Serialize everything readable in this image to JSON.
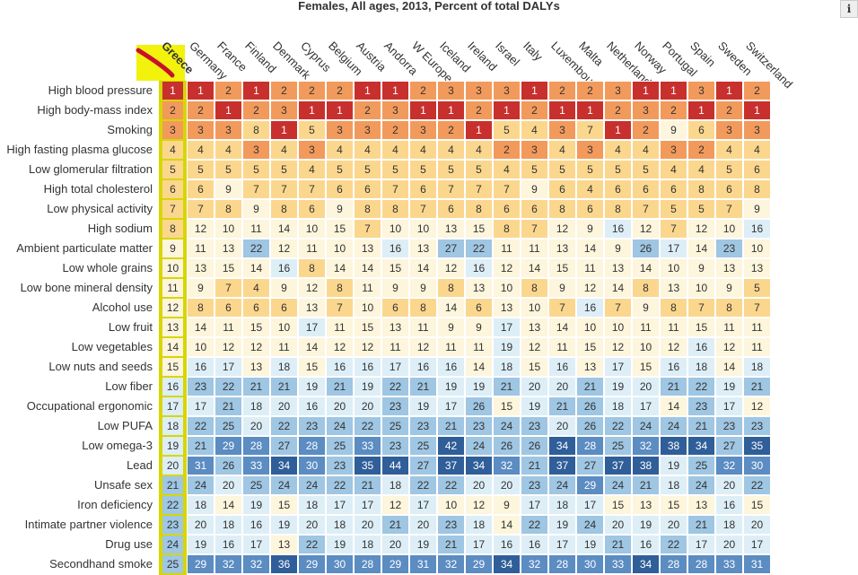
{
  "chart_data": {
    "type": "heatmap",
    "title": "Females, All ages, 2013, Percent of total DALYs",
    "selected_country": "Greece",
    "countries": [
      "Greece",
      "Germany",
      "France",
      "Finland",
      "Denmark",
      "Cyprus",
      "Belgium",
      "Austria",
      "Andorra",
      "W Europe",
      "Iceland",
      "Ireland",
      "Israel",
      "Italy",
      "Luxembourg",
      "Malta",
      "Netherlands",
      "Norway",
      "Portugal",
      "Spain",
      "Sweden",
      "Switzerland"
    ],
    "risk_factors": [
      "High blood pressure",
      "High body-mass index",
      "Smoking",
      "High fasting plasma glucose",
      "Low glomerular filtration",
      "High total cholesterol",
      "Low physical activity",
      "High sodium",
      "Ambient particulate matter",
      "Low whole grains",
      "Low bone mineral density",
      "Alcohol use",
      "Low fruit",
      "Low vegetables",
      "Low nuts and seeds",
      "Low fiber",
      "Occupational ergonomic",
      "Low PUFA",
      "Low omega-3",
      "Lead",
      "Unsafe sex",
      "Iron deficiency",
      "Intimate partner violence",
      "Drug use",
      "Secondhand smoke"
    ],
    "ranks": [
      [
        1,
        1,
        2,
        1,
        2,
        2,
        2,
        1,
        1,
        2,
        3,
        3,
        3,
        1,
        2,
        2,
        3,
        1,
        1,
        3,
        1,
        2
      ],
      [
        2,
        2,
        1,
        2,
        3,
        1,
        1,
        2,
        3,
        1,
        1,
        2,
        1,
        2,
        1,
        1,
        2,
        3,
        2,
        1,
        2,
        1
      ],
      [
        3,
        3,
        3,
        8,
        1,
        5,
        3,
        3,
        2,
        3,
        2,
        1,
        5,
        4,
        3,
        7,
        1,
        2,
        9,
        6,
        3,
        3
      ],
      [
        4,
        4,
        4,
        3,
        4,
        3,
        4,
        4,
        4,
        4,
        4,
        4,
        2,
        3,
        4,
        3,
        4,
        4,
        3,
        2,
        4,
        4
      ],
      [
        5,
        5,
        5,
        5,
        5,
        4,
        5,
        5,
        5,
        5,
        5,
        5,
        4,
        5,
        5,
        5,
        5,
        5,
        4,
        4,
        5,
        6
      ],
      [
        6,
        6,
        9,
        7,
        7,
        7,
        6,
        6,
        7,
        6,
        7,
        7,
        7,
        9,
        6,
        4,
        6,
        6,
        6,
        8,
        6,
        8
      ],
      [
        7,
        7,
        8,
        9,
        8,
        6,
        9,
        8,
        8,
        7,
        6,
        8,
        6,
        6,
        8,
        6,
        8,
        7,
        5,
        5,
        7,
        9
      ],
      [
        8,
        12,
        10,
        11,
        14,
        10,
        15,
        7,
        10,
        10,
        13,
        15,
        8,
        7,
        12,
        9,
        16,
        12,
        7,
        12,
        10,
        16
      ],
      [
        9,
        11,
        13,
        22,
        12,
        11,
        10,
        13,
        16,
        13,
        27,
        22,
        11,
        11,
        13,
        14,
        9,
        26,
        17,
        14,
        23,
        10
      ],
      [
        10,
        13,
        15,
        14,
        16,
        8,
        14,
        14,
        15,
        14,
        12,
        16,
        12,
        14,
        15,
        11,
        13,
        14,
        10,
        9,
        13,
        13
      ],
      [
        11,
        9,
        7,
        4,
        9,
        12,
        8,
        11,
        9,
        9,
        8,
        13,
        10,
        8,
        9,
        12,
        14,
        8,
        13,
        10,
        9,
        5
      ],
      [
        12,
        8,
        6,
        6,
        6,
        13,
        7,
        10,
        6,
        8,
        14,
        6,
        13,
        10,
        7,
        16,
        7,
        9,
        8,
        7,
        8,
        7
      ],
      [
        13,
        14,
        11,
        15,
        10,
        17,
        11,
        15,
        13,
        11,
        9,
        9,
        17,
        13,
        14,
        10,
        10,
        11,
        11,
        15,
        11,
        11
      ],
      [
        14,
        10,
        12,
        12,
        11,
        14,
        12,
        12,
        11,
        12,
        11,
        11,
        19,
        12,
        11,
        15,
        12,
        10,
        12,
        16,
        12,
        11
      ],
      [
        15,
        16,
        17,
        13,
        18,
        15,
        16,
        16,
        17,
        16,
        16,
        14,
        18,
        15,
        16,
        13,
        17,
        15,
        16,
        18,
        14,
        18
      ],
      [
        16,
        23,
        22,
        21,
        21,
        19,
        21,
        19,
        22,
        21,
        19,
        19,
        21,
        20,
        20,
        21,
        19,
        20,
        21,
        22,
        19,
        21
      ],
      [
        17,
        17,
        21,
        18,
        20,
        16,
        20,
        20,
        23,
        19,
        17,
        26,
        15,
        19,
        21,
        26,
        18,
        17,
        14,
        23,
        17,
        12
      ],
      [
        18,
        22,
        25,
        20,
        22,
        23,
        24,
        22,
        25,
        23,
        21,
        23,
        24,
        23,
        20,
        26,
        22,
        24,
        24,
        21,
        23,
        23
      ],
      [
        19,
        21,
        29,
        28,
        27,
        28,
        25,
        33,
        23,
        25,
        42,
        24,
        26,
        26,
        34,
        28,
        25,
        32,
        38,
        34,
        27,
        35
      ],
      [
        20,
        31,
        26,
        33,
        34,
        30,
        23,
        35,
        44,
        27,
        37,
        34,
        32,
        21,
        37,
        27,
        37,
        38,
        19,
        25,
        32,
        30
      ],
      [
        21,
        24,
        20,
        25,
        24,
        24,
        22,
        21,
        18,
        22,
        22,
        20,
        20,
        23,
        24,
        29,
        24,
        21,
        18,
        24,
        20,
        22
      ],
      [
        22,
        18,
        14,
        19,
        15,
        18,
        17,
        17,
        12,
        17,
        10,
        12,
        9,
        17,
        18,
        17,
        15,
        13,
        15,
        13,
        16,
        15
      ],
      [
        23,
        20,
        18,
        16,
        19,
        20,
        18,
        20,
        21,
        20,
        23,
        18,
        14,
        22,
        19,
        24,
        20,
        19,
        20,
        21,
        18,
        20
      ],
      [
        24,
        19,
        16,
        17,
        13,
        22,
        19,
        18,
        20,
        19,
        21,
        17,
        16,
        16,
        17,
        19,
        21,
        16,
        22,
        17,
        20,
        17
      ],
      [
        25,
        29,
        32,
        32,
        36,
        29,
        30,
        28,
        29,
        31,
        32,
        29,
        34,
        32,
        28,
        30,
        33,
        34,
        28,
        28,
        33,
        31
      ]
    ],
    "color_scale": {
      "1": "#c8302e",
      "2-3": "#f29a5c",
      "4-8": "#fbd78e",
      "9-15": "#fdf5dc",
      "16-20": "#ddeef7",
      "21-27": "#9fc6e3",
      "28-33": "#5b8cc2",
      "34+": "#2f5e99",
      "greece_column": "#d8d600"
    }
  }
}
